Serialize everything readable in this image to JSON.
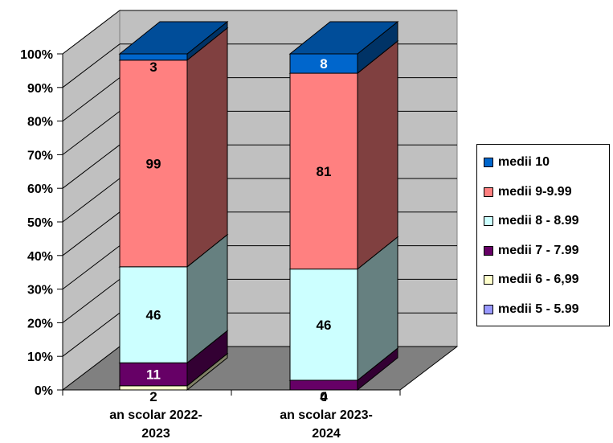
{
  "chart_data": {
    "type": "bar",
    "stacked": "percent",
    "three_d": true,
    "categories": [
      [
        "an scolar 2022-",
        "2023"
      ],
      [
        "an scolar 2023-",
        "2024"
      ]
    ],
    "y_ticks": [
      "0%",
      "10%",
      "20%",
      "30%",
      "40%",
      "50%",
      "60%",
      "70%",
      "80%",
      "90%",
      "100%"
    ],
    "ylim": [
      0,
      100
    ],
    "grid": true,
    "legend_position": "right",
    "series": [
      {
        "name": "medii 5 - 5.99",
        "values": [
          0,
          0
        ],
        "color": "#9999ff"
      },
      {
        "name": "medii 6 - 6,99",
        "values": [
          2,
          0
        ],
        "color": "#ffffcc"
      },
      {
        "name": "medii 7 - 7.99",
        "values": [
          11,
          4
        ],
        "color": "#660066"
      },
      {
        "name": "medii 8 - 8.99",
        "values": [
          46,
          46
        ],
        "color": "#ccffff"
      },
      {
        "name": "medii 9-9.99",
        "values": [
          99,
          81
        ],
        "color": "#ff8080"
      },
      {
        "name": "medii 10",
        "values": [
          3,
          8
        ],
        "color": "#0066cc"
      }
    ],
    "data_labels": [
      {
        "category": 0,
        "series": 1,
        "text": "2"
      },
      {
        "category": 0,
        "series": 2,
        "text": "11"
      },
      {
        "category": 0,
        "series": 3,
        "text": "46"
      },
      {
        "category": 0,
        "series": 4,
        "text": "99"
      },
      {
        "category": 0,
        "series": 5,
        "text": "3"
      },
      {
        "category": 1,
        "series": 1,
        "text": "0"
      },
      {
        "category": 1,
        "series": 2,
        "text": "4"
      },
      {
        "category": 1,
        "series": 3,
        "text": "46"
      },
      {
        "category": 1,
        "series": 4,
        "text": "81"
      },
      {
        "category": 1,
        "series": 5,
        "text": "8"
      }
    ]
  }
}
